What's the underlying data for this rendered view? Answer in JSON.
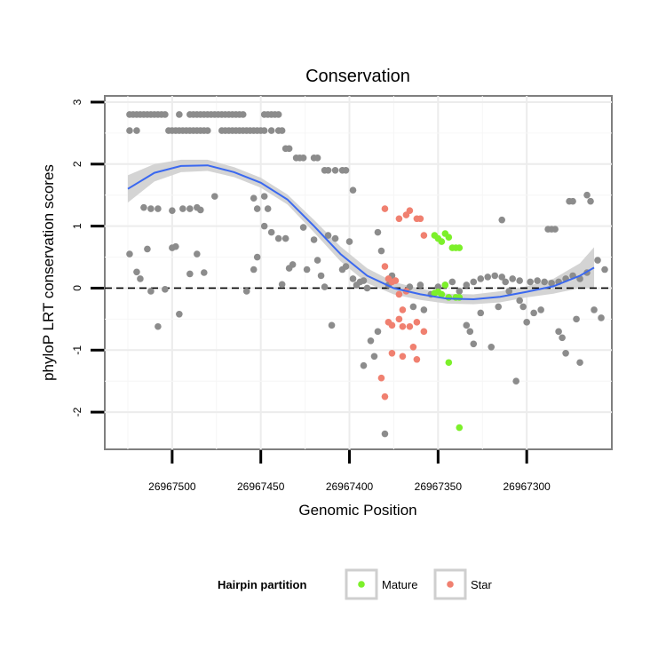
{
  "chart_data": {
    "type": "scatter",
    "title": "Conservation",
    "xlabel": "Genomic Position",
    "ylabel": "phyloP LRT conservation scores",
    "xlim": [
      26967538,
      26967252
    ],
    "ylim": [
      -2.6,
      3.1
    ],
    "x_reversed": true,
    "x_ticks": [
      26967500,
      26967450,
      26967400,
      26967350,
      26967300
    ],
    "x_tick_labels": [
      "26967500",
      "26967450",
      "26967400",
      "26967350",
      "26967300"
    ],
    "y_ticks": [
      -2,
      -1,
      0,
      1,
      2,
      3
    ],
    "y_tick_labels": [
      "-2",
      "-1",
      "0",
      "1",
      "2",
      "3"
    ],
    "reference_line": {
      "y": 0,
      "style": "dashed"
    },
    "legend": {
      "title": "Hairpin partition",
      "position": "bottom",
      "entries": [
        {
          "label": "Mature",
          "color": "#7CF02A"
        },
        {
          "label": "Star",
          "color": "#F08070"
        }
      ]
    },
    "colors": {
      "other": "#8C8C8C",
      "Mature": "#7CF02A",
      "Star": "#F08070",
      "smooth": "#3A68F0",
      "band": "#D2D2D2"
    },
    "smooth": {
      "x": [
        26967525,
        26967510,
        26967495,
        26967480,
        26967465,
        26967450,
        26967435,
        26967420,
        26967405,
        26967390,
        26967375,
        26967360,
        26967345,
        26967330,
        26967315,
        26967300,
        26967285,
        26967270,
        26967262
      ],
      "y": [
        1.6,
        1.86,
        1.97,
        1.98,
        1.87,
        1.7,
        1.43,
        1.0,
        0.55,
        0.2,
        0.0,
        -0.1,
        -0.17,
        -0.18,
        -0.14,
        -0.06,
        0.03,
        0.2,
        0.33
      ],
      "band_halfwidth": [
        0.22,
        0.14,
        0.1,
        0.09,
        0.08,
        0.08,
        0.08,
        0.1,
        0.12,
        0.12,
        0.1,
        0.09,
        0.08,
        0.08,
        0.09,
        0.09,
        0.12,
        0.2,
        0.33
      ]
    },
    "series": [
      {
        "name": "Other",
        "points": [
          [
            26967524,
            2.8
          ],
          [
            26967522,
            2.8
          ],
          [
            26967520,
            2.8
          ],
          [
            26967518,
            2.8
          ],
          [
            26967516,
            2.8
          ],
          [
            26967514,
            2.8
          ],
          [
            26967512,
            2.8
          ],
          [
            26967510,
            2.8
          ],
          [
            26967508,
            2.8
          ],
          [
            26967506,
            2.8
          ],
          [
            26967504,
            2.8
          ],
          [
            26967496,
            2.8
          ],
          [
            26967490,
            2.8
          ],
          [
            26967488,
            2.8
          ],
          [
            26967486,
            2.8
          ],
          [
            26967484,
            2.8
          ],
          [
            26967482,
            2.8
          ],
          [
            26967480,
            2.8
          ],
          [
            26967478,
            2.8
          ],
          [
            26967476,
            2.8
          ],
          [
            26967474,
            2.8
          ],
          [
            26967472,
            2.8
          ],
          [
            26967470,
            2.8
          ],
          [
            26967468,
            2.8
          ],
          [
            26967466,
            2.8
          ],
          [
            26967464,
            2.8
          ],
          [
            26967462,
            2.8
          ],
          [
            26967460,
            2.8
          ],
          [
            26967448,
            2.8
          ],
          [
            26967446,
            2.8
          ],
          [
            26967444,
            2.8
          ],
          [
            26967442,
            2.8
          ],
          [
            26967440,
            2.8
          ],
          [
            26967524,
            2.54
          ],
          [
            26967520,
            2.54
          ],
          [
            26967502,
            2.54
          ],
          [
            26967500,
            2.54
          ],
          [
            26967498,
            2.54
          ],
          [
            26967496,
            2.54
          ],
          [
            26967494,
            2.54
          ],
          [
            26967492,
            2.54
          ],
          [
            26967490,
            2.54
          ],
          [
            26967488,
            2.54
          ],
          [
            26967486,
            2.54
          ],
          [
            26967484,
            2.54
          ],
          [
            26967482,
            2.54
          ],
          [
            26967480,
            2.54
          ],
          [
            26967472,
            2.54
          ],
          [
            26967470,
            2.54
          ],
          [
            26967468,
            2.54
          ],
          [
            26967466,
            2.54
          ],
          [
            26967464,
            2.54
          ],
          [
            26967462,
            2.54
          ],
          [
            26967460,
            2.54
          ],
          [
            26967458,
            2.54
          ],
          [
            26967456,
            2.54
          ],
          [
            26967454,
            2.54
          ],
          [
            26967452,
            2.54
          ],
          [
            26967450,
            2.54
          ],
          [
            26967448,
            2.54
          ],
          [
            26967444,
            2.54
          ],
          [
            26967440,
            2.54
          ],
          [
            26967438,
            2.54
          ],
          [
            26967436,
            2.25
          ],
          [
            26967434,
            2.25
          ],
          [
            26967430,
            2.1
          ],
          [
            26967428,
            2.1
          ],
          [
            26967426,
            2.1
          ],
          [
            26967420,
            2.1
          ],
          [
            26967418,
            2.1
          ],
          [
            26967414,
            1.9
          ],
          [
            26967412,
            1.9
          ],
          [
            26967408,
            1.9
          ],
          [
            26967404,
            1.9
          ],
          [
            26967402,
            1.9
          ],
          [
            26967398,
            1.58
          ],
          [
            26967476,
            1.48
          ],
          [
            26967454,
            1.45
          ],
          [
            26967448,
            1.48
          ],
          [
            26967516,
            1.3
          ],
          [
            26967512,
            1.28
          ],
          [
            26967508,
            1.28
          ],
          [
            26967500,
            1.25
          ],
          [
            26967494,
            1.28
          ],
          [
            26967490,
            1.28
          ],
          [
            26967486,
            1.3
          ],
          [
            26967484,
            1.26
          ],
          [
            26967452,
            1.28
          ],
          [
            26967446,
            1.28
          ],
          [
            26967524,
            0.55
          ],
          [
            26967520,
            0.26
          ],
          [
            26967518,
            0.15
          ],
          [
            26967514,
            0.63
          ],
          [
            26967512,
            -0.05
          ],
          [
            26967508,
            -0.62
          ],
          [
            26967504,
            -0.02
          ],
          [
            26967500,
            0.65
          ],
          [
            26967498,
            0.67
          ],
          [
            26967496,
            -0.42
          ],
          [
            26967490,
            0.23
          ],
          [
            26967486,
            0.55
          ],
          [
            26967482,
            0.25
          ],
          [
            26967458,
            -0.05
          ],
          [
            26967454,
            0.3
          ],
          [
            26967452,
            0.5
          ],
          [
            26967448,
            1.0
          ],
          [
            26967444,
            0.9
          ],
          [
            26967440,
            0.8
          ],
          [
            26967438,
            0.06
          ],
          [
            26967436,
            0.8
          ],
          [
            26967434,
            0.32
          ],
          [
            26967432,
            0.38
          ],
          [
            26967426,
            0.98
          ],
          [
            26967424,
            0.3
          ],
          [
            26967420,
            0.78
          ],
          [
            26967418,
            0.45
          ],
          [
            26967416,
            0.2
          ],
          [
            26967414,
            0.02
          ],
          [
            26967412,
            0.85
          ],
          [
            26967410,
            -0.6
          ],
          [
            26967408,
            0.8
          ],
          [
            26967404,
            0.3
          ],
          [
            26967402,
            0.35
          ],
          [
            26967400,
            0.75
          ],
          [
            26967398,
            0.15
          ],
          [
            26967396,
            0.05
          ],
          [
            26967394,
            0.1
          ],
          [
            26967392,
            0.12
          ],
          [
            26967392,
            -1.25
          ],
          [
            26967390,
            0.0
          ],
          [
            26967388,
            -0.85
          ],
          [
            26967386,
            -1.1
          ],
          [
            26967384,
            0.9
          ],
          [
            26967384,
            -0.7
          ],
          [
            26967382,
            0.6
          ],
          [
            26967380,
            -2.35
          ],
          [
            26967378,
            0.05
          ],
          [
            26967376,
            0.2
          ],
          [
            26967366,
            0.02
          ],
          [
            26967364,
            -0.3
          ],
          [
            26967360,
            0.05
          ],
          [
            26967358,
            -0.35
          ],
          [
            26967354,
            -0.1
          ],
          [
            26967350,
            0.02
          ],
          [
            26967346,
            0.05
          ],
          [
            26967342,
            0.1
          ],
          [
            26967338,
            -0.05
          ],
          [
            26967334,
            0.05
          ],
          [
            26967330,
            0.1
          ],
          [
            26967334,
            -0.6
          ],
          [
            26967332,
            -0.7
          ],
          [
            26967330,
            -0.9
          ],
          [
            26967326,
            -0.4
          ],
          [
            26967320,
            -0.95
          ],
          [
            26967316,
            -0.3
          ],
          [
            26967314,
            1.1
          ],
          [
            26967312,
            0.1
          ],
          [
            26967310,
            -0.05
          ],
          [
            26967306,
            -1.5
          ],
          [
            26967304,
            -0.2
          ],
          [
            26967302,
            -0.3
          ],
          [
            26967300,
            -0.55
          ],
          [
            26967296,
            -0.4
          ],
          [
            26967292,
            -0.35
          ],
          [
            26967288,
            0.95
          ],
          [
            26967286,
            0.95
          ],
          [
            26967284,
            0.95
          ],
          [
            26967282,
            -0.7
          ],
          [
            26967280,
            -0.8
          ],
          [
            26967278,
            -1.05
          ],
          [
            26967276,
            1.4
          ],
          [
            26967274,
            1.4
          ],
          [
            26967272,
            -0.5
          ],
          [
            26967270,
            -1.2
          ],
          [
            26967266,
            1.5
          ],
          [
            26967264,
            1.4
          ],
          [
            26967262,
            -0.35
          ],
          [
            26967260,
            0.45
          ],
          [
            26967258,
            -0.48
          ],
          [
            26967256,
            0.3
          ],
          [
            26967326,
            0.15
          ],
          [
            26967322,
            0.18
          ],
          [
            26967318,
            0.2
          ],
          [
            26967314,
            0.18
          ],
          [
            26967308,
            0.15
          ],
          [
            26967304,
            0.12
          ],
          [
            26967298,
            0.1
          ],
          [
            26967294,
            0.12
          ],
          [
            26967290,
            0.1
          ],
          [
            26967286,
            0.08
          ],
          [
            26967282,
            0.1
          ],
          [
            26967278,
            0.15
          ],
          [
            26967274,
            0.2
          ],
          [
            26967270,
            0.15
          ],
          [
            26967266,
            0.25
          ]
        ]
      },
      {
        "name": "Mature",
        "points": [
          [
            26967352,
            0.85
          ],
          [
            26967350,
            0.8
          ],
          [
            26967348,
            0.75
          ],
          [
            26967346,
            0.88
          ],
          [
            26967344,
            0.82
          ],
          [
            26967342,
            0.65
          ],
          [
            26967340,
            0.65
          ],
          [
            26967338,
            0.65
          ],
          [
            26967352,
            -0.08
          ],
          [
            26967350,
            -0.06
          ],
          [
            26967348,
            -0.1
          ],
          [
            26967346,
            0.05
          ],
          [
            26967344,
            -0.15
          ],
          [
            26967340,
            -0.15
          ],
          [
            26967338,
            -0.15
          ],
          [
            26967344,
            -1.2
          ],
          [
            26967338,
            -2.25
          ]
        ]
      },
      {
        "name": "Star",
        "points": [
          [
            26967380,
            1.28
          ],
          [
            26967372,
            1.12
          ],
          [
            26967368,
            1.18
          ],
          [
            26967366,
            1.25
          ],
          [
            26967362,
            1.12
          ],
          [
            26967360,
            1.12
          ],
          [
            26967358,
            0.85
          ],
          [
            26967380,
            0.35
          ],
          [
            26967378,
            0.15
          ],
          [
            26967376,
            0.1
          ],
          [
            26967374,
            0.12
          ],
          [
            26967372,
            -0.1
          ],
          [
            26967370,
            -0.35
          ],
          [
            26967368,
            -0.05
          ],
          [
            26967378,
            -0.55
          ],
          [
            26967376,
            -0.6
          ],
          [
            26967372,
            -0.5
          ],
          [
            26967370,
            -0.62
          ],
          [
            26967366,
            -0.62
          ],
          [
            26967362,
            -0.55
          ],
          [
            26967358,
            -0.7
          ],
          [
            26967376,
            -1.05
          ],
          [
            26967370,
            -1.1
          ],
          [
            26967364,
            -0.95
          ],
          [
            26967362,
            -1.15
          ],
          [
            26967382,
            -1.45
          ],
          [
            26967380,
            -1.75
          ]
        ]
      }
    ]
  }
}
